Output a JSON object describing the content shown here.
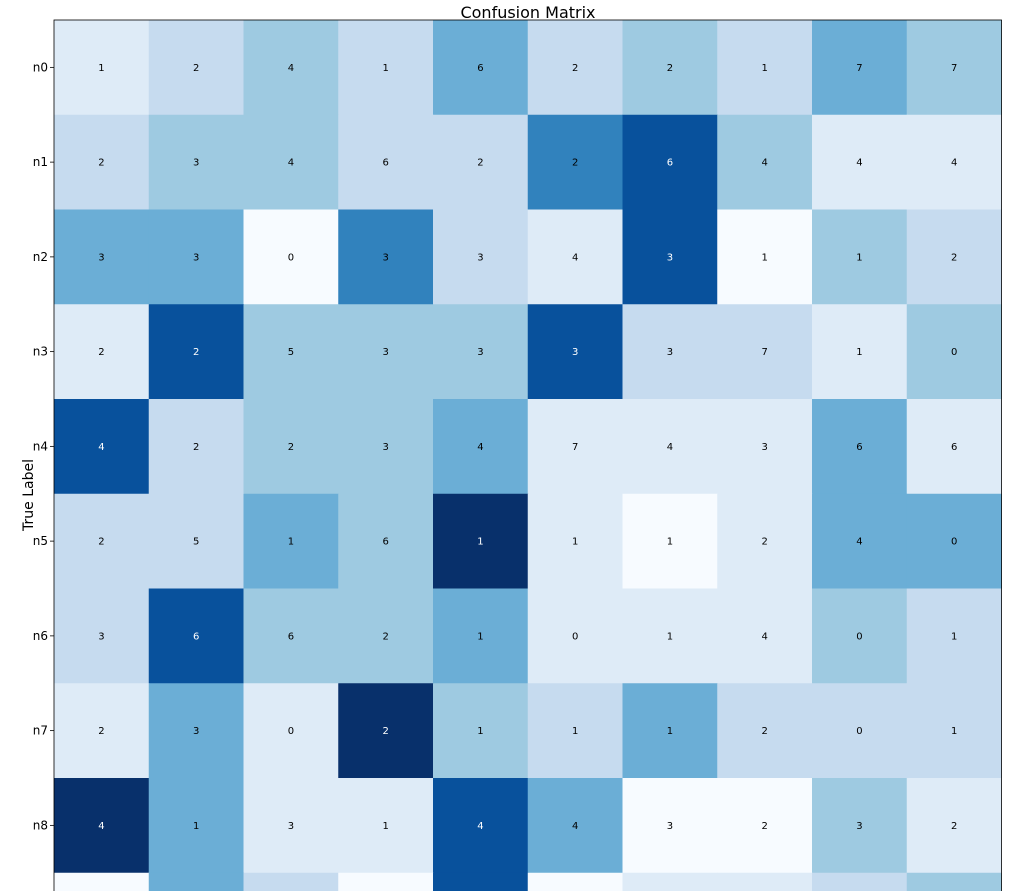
{
  "chart_data": {
    "type": "heatmap",
    "title": "Confusion Matrix",
    "ylabel": "True Label",
    "xlabel": "",
    "colormap": "Blues",
    "value_range": [
      0,
      7
    ],
    "row_labels": [
      "n0",
      "n1",
      "n2",
      "n3",
      "n4",
      "n5",
      "n6",
      "n7",
      "n8"
    ],
    "values": [
      [
        1,
        2,
        4,
        1,
        6,
        2,
        2,
        1,
        7,
        7
      ],
      [
        2,
        3,
        4,
        6,
        2,
        2,
        6,
        4,
        4,
        4
      ],
      [
        3,
        3,
        0,
        3,
        3,
        4,
        3,
        1,
        1,
        2
      ],
      [
        2,
        2,
        5,
        3,
        3,
        3,
        3,
        7,
        1,
        0
      ],
      [
        4,
        2,
        2,
        3,
        4,
        7,
        4,
        3,
        6,
        6
      ],
      [
        2,
        5,
        1,
        6,
        1,
        1,
        1,
        2,
        4,
        0
      ],
      [
        3,
        6,
        6,
        2,
        1,
        0,
        1,
        4,
        0,
        1
      ],
      [
        2,
        3,
        0,
        2,
        1,
        1,
        1,
        2,
        0,
        1
      ],
      [
        4,
        1,
        3,
        1,
        4,
        4,
        3,
        2,
        3,
        2
      ]
    ],
    "shades": [
      [
        1,
        2,
        3,
        2,
        4,
        2,
        3,
        2,
        4,
        3
      ],
      [
        2,
        3,
        3,
        2,
        2,
        5,
        6,
        3,
        1,
        1
      ],
      [
        4,
        4,
        0,
        5,
        2,
        1,
        6,
        0,
        3,
        2
      ],
      [
        1,
        6,
        3,
        3,
        3,
        6,
        2,
        2,
        1,
        3
      ],
      [
        6,
        2,
        3,
        3,
        4,
        1,
        1,
        1,
        4,
        1
      ],
      [
        2,
        2,
        4,
        3,
        7,
        1,
        0,
        1,
        4,
        4
      ],
      [
        2,
        6,
        3,
        3,
        4,
        1,
        1,
        1,
        3,
        2
      ],
      [
        1,
        4,
        1,
        7,
        3,
        2,
        4,
        2,
        2,
        2
      ],
      [
        7,
        4,
        1,
        1,
        6,
        4,
        0,
        0,
        3,
        1
      ]
    ],
    "partial_next_row_shades": [
      0,
      4,
      2,
      0,
      6,
      0,
      1,
      1,
      2,
      3
    ],
    "grid": false,
    "legend": "none"
  }
}
